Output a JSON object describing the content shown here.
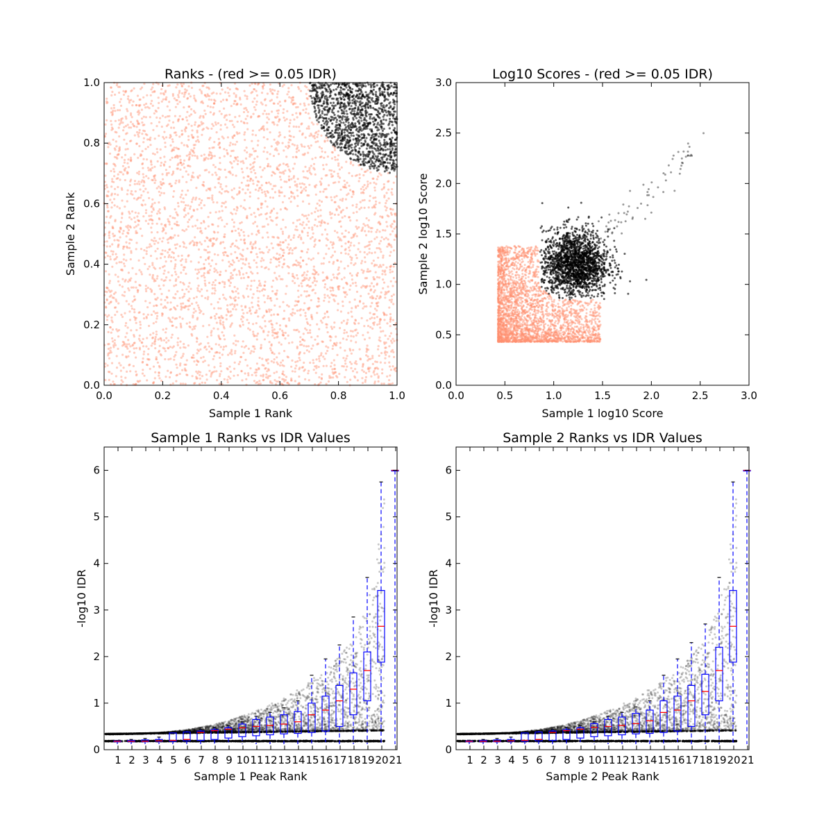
{
  "figure": {
    "colors": {
      "fail_idr": "#FF9070",
      "pass_idr": "#000000",
      "box": "#0000FF",
      "median": "#FF0000",
      "background": "#FFFFFF"
    }
  },
  "chart_data": [
    {
      "type": "scatter",
      "title": "Ranks - (red >= 0.05 IDR)",
      "xlabel": "Sample 1 Rank",
      "ylabel": "Sample 2 Rank",
      "xlim": [
        0.0,
        1.0
      ],
      "ylim": [
        0.0,
        1.0
      ],
      "xticks": [
        "0.0",
        "0.2",
        "0.4",
        "0.6",
        "0.8",
        "1.0"
      ],
      "yticks": [
        "0.0",
        "0.2",
        "0.4",
        "0.6",
        "0.8",
        "1.0"
      ],
      "grid": false,
      "series": [
        {
          "color": "#FF9070",
          "region": "uniform over [0,1]x[0,1] outside the quarter-circle of radius 0.3 centered at (1,1)"
        },
        {
          "color": "#000000",
          "region": "inside the quarter-circle of radius 0.3 centered at (1,1)"
        }
      ]
    },
    {
      "type": "scatter",
      "title": "Log10 Scores - (red >= 0.05 IDR)",
      "xlabel": "Sample 1 log10 Score",
      "ylabel": "Sample 2 log10 Score",
      "xlim": [
        0.0,
        3.0
      ],
      "ylim": [
        0.0,
        3.0
      ],
      "xticks": [
        "0.0",
        "0.5",
        "1.0",
        "1.5",
        "2.0",
        "2.5",
        "3.0"
      ],
      "yticks": [
        "0.0",
        "0.5",
        "1.0",
        "1.5",
        "2.0",
        "2.5",
        "3.0"
      ],
      "grid": false,
      "series": [
        {
          "color": "#FF9070",
          "x_min": 0.43,
          "y_min": 0.43,
          "x_max_dense": 1.45,
          "y_max_dense": 1.3
        },
        {
          "color": "#000000",
          "x_range": [
            0.85,
            2.5
          ],
          "y_range": [
            0.85,
            2.42
          ]
        }
      ]
    },
    {
      "type": "box",
      "title": "Sample 1 Ranks vs IDR Values",
      "xlabel": "Sample 1 Peak Rank",
      "ylabel": "-log10 IDR",
      "ylim": [
        0,
        6.5
      ],
      "xticks": [
        "1",
        "2",
        "3",
        "4",
        "5",
        "6",
        "7",
        "8",
        "9",
        "10",
        "11",
        "12",
        "13",
        "14",
        "15",
        "16",
        "17",
        "18",
        "19",
        "20",
        "21"
      ],
      "yticks": [
        "0",
        "1",
        "2",
        "3",
        "4",
        "5",
        "6"
      ],
      "grid": false,
      "boxes": [
        {
          "bin": 1,
          "q1": 0.17,
          "median": 0.18,
          "q3": 0.19,
          "whisker_high": 0.2
        },
        {
          "bin": 2,
          "q1": 0.17,
          "median": 0.18,
          "q3": 0.2,
          "whisker_high": 0.22
        },
        {
          "bin": 3,
          "q1": 0.17,
          "median": 0.18,
          "q3": 0.21,
          "whisker_high": 0.24
        },
        {
          "bin": 4,
          "q1": 0.18,
          "median": 0.19,
          "q3": 0.22,
          "whisker_high": 0.27
        },
        {
          "bin": 5,
          "q1": 0.18,
          "median": 0.2,
          "q3": 0.36,
          "whisker_high": 0.38
        },
        {
          "bin": 6,
          "q1": 0.19,
          "median": 0.22,
          "q3": 0.38,
          "whisker_high": 0.41
        },
        {
          "bin": 7,
          "q1": 0.2,
          "median": 0.37,
          "q3": 0.4,
          "whisker_high": 0.44
        },
        {
          "bin": 8,
          "q1": 0.22,
          "median": 0.41,
          "q3": 0.43,
          "whisker_high": 0.48
        },
        {
          "bin": 9,
          "q1": 0.25,
          "median": 0.44,
          "q3": 0.47,
          "whisker_high": 0.52
        },
        {
          "bin": 10,
          "q1": 0.28,
          "median": 0.47,
          "q3": 0.55,
          "whisker_high": 0.6
        },
        {
          "bin": 11,
          "q1": 0.3,
          "median": 0.5,
          "q3": 0.65,
          "whisker_high": 0.72
        },
        {
          "bin": 12,
          "q1": 0.32,
          "median": 0.52,
          "q3": 0.7,
          "whisker_high": 0.8
        },
        {
          "bin": 13,
          "q1": 0.34,
          "median": 0.55,
          "q3": 0.75,
          "whisker_high": 0.9
        },
        {
          "bin": 14,
          "q1": 0.35,
          "median": 0.6,
          "q3": 0.82,
          "whisker_high": 1.05
        },
        {
          "bin": 15,
          "q1": 0.37,
          "median": 0.75,
          "q3": 1.0,
          "whisker_high": 1.6
        },
        {
          "bin": 16,
          "q1": 0.4,
          "median": 0.85,
          "q3": 1.15,
          "whisker_high": 1.95
        },
        {
          "bin": 17,
          "q1": 0.5,
          "median": 1.05,
          "q3": 1.38,
          "whisker_high": 2.25
        },
        {
          "bin": 18,
          "q1": 0.75,
          "median": 1.3,
          "q3": 1.65,
          "whisker_high": 2.85
        },
        {
          "bin": 19,
          "q1": 1.05,
          "median": 1.7,
          "q3": 2.1,
          "whisker_high": 3.7
        },
        {
          "bin": 20,
          "q1": 1.88,
          "median": 2.65,
          "q3": 3.42,
          "whisker_high": 5.75
        },
        {
          "bin": 21,
          "q1": 6.0,
          "median": 6.0,
          "q3": 6.0,
          "whisker_high": 6.0
        }
      ]
    },
    {
      "type": "box",
      "title": "Sample 2 Ranks vs IDR Values",
      "xlabel": "Sample 2 Peak Rank",
      "ylabel": "-log10 IDR",
      "ylim": [
        0,
        6.5
      ],
      "xticks": [
        "1",
        "2",
        "3",
        "4",
        "5",
        "6",
        "7",
        "8",
        "9",
        "10",
        "11",
        "12",
        "13",
        "14",
        "15",
        "16",
        "17",
        "18",
        "19",
        "20",
        "21"
      ],
      "yticks": [
        "0",
        "1",
        "2",
        "3",
        "4",
        "5",
        "6"
      ],
      "grid": false,
      "boxes": [
        {
          "bin": 1,
          "q1": 0.17,
          "median": 0.18,
          "q3": 0.19,
          "whisker_high": 0.2
        },
        {
          "bin": 2,
          "q1": 0.17,
          "median": 0.18,
          "q3": 0.2,
          "whisker_high": 0.22
        },
        {
          "bin": 3,
          "q1": 0.17,
          "median": 0.18,
          "q3": 0.21,
          "whisker_high": 0.24
        },
        {
          "bin": 4,
          "q1": 0.18,
          "median": 0.19,
          "q3": 0.22,
          "whisker_high": 0.27
        },
        {
          "bin": 5,
          "q1": 0.18,
          "median": 0.2,
          "q3": 0.36,
          "whisker_high": 0.38
        },
        {
          "bin": 6,
          "q1": 0.19,
          "median": 0.22,
          "q3": 0.38,
          "whisker_high": 0.41
        },
        {
          "bin": 7,
          "q1": 0.2,
          "median": 0.37,
          "q3": 0.4,
          "whisker_high": 0.44
        },
        {
          "bin": 8,
          "q1": 0.22,
          "median": 0.41,
          "q3": 0.43,
          "whisker_high": 0.48
        },
        {
          "bin": 9,
          "q1": 0.25,
          "median": 0.44,
          "q3": 0.47,
          "whisker_high": 0.52
        },
        {
          "bin": 10,
          "q1": 0.28,
          "median": 0.48,
          "q3": 0.56,
          "whisker_high": 0.6
        },
        {
          "bin": 11,
          "q1": 0.3,
          "median": 0.5,
          "q3": 0.65,
          "whisker_high": 0.72
        },
        {
          "bin": 12,
          "q1": 0.32,
          "median": 0.52,
          "q3": 0.7,
          "whisker_high": 0.8
        },
        {
          "bin": 13,
          "q1": 0.34,
          "median": 0.56,
          "q3": 0.78,
          "whisker_high": 0.92
        },
        {
          "bin": 14,
          "q1": 0.35,
          "median": 0.62,
          "q3": 0.85,
          "whisker_high": 1.05
        },
        {
          "bin": 15,
          "q1": 0.37,
          "median": 0.8,
          "q3": 1.05,
          "whisker_high": 1.6
        },
        {
          "bin": 16,
          "q1": 0.4,
          "median": 0.85,
          "q3": 1.15,
          "whisker_high": 1.95
        },
        {
          "bin": 17,
          "q1": 0.5,
          "median": 1.05,
          "q3": 1.38,
          "whisker_high": 2.3
        },
        {
          "bin": 18,
          "q1": 0.75,
          "median": 1.25,
          "q3": 1.62,
          "whisker_high": 2.7
        },
        {
          "bin": 19,
          "q1": 1.05,
          "median": 1.7,
          "q3": 2.2,
          "whisker_high": 3.7
        },
        {
          "bin": 20,
          "q1": 1.88,
          "median": 2.65,
          "q3": 3.42,
          "whisker_high": 5.75
        },
        {
          "bin": 21,
          "q1": 6.0,
          "median": 6.0,
          "q3": 6.0,
          "whisker_high": 6.0
        }
      ]
    }
  ]
}
